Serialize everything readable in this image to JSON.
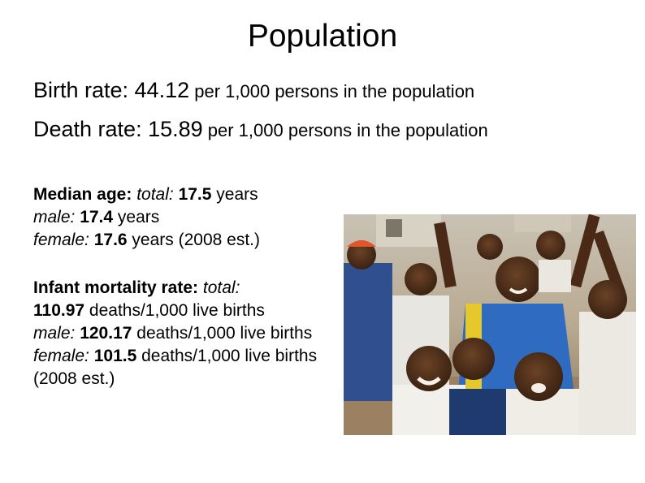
{
  "title": "Population",
  "birth_rate": {
    "label": "Birth rate: 44.12",
    "unit": " per 1,000 persons in the population"
  },
  "death_rate": {
    "label": "Death rate: 15.89",
    "unit": " per 1,000 persons in the population"
  },
  "median_age": {
    "label": "Median age:",
    "total_label": "total:",
    "total_value": "17.5",
    "total_unit": " years",
    "male_label": "male:",
    "male_value": "17.4",
    "male_unit": " years",
    "female_label": "female:",
    "female_value": "17.6",
    "female_unit": " years (2008 est.)"
  },
  "infant_mortality": {
    "label": "Infant mortality rate:",
    "total_label": "total:",
    "total_value": "110.97",
    "total_unit": " deaths/1,000 live births",
    "male_label": "male:",
    "male_value": "120.17",
    "male_unit": " deaths/1,000 live births",
    "female_label": "female:",
    "female_value": "101.5",
    "female_unit": " deaths/1,000 live births (2008 est.)"
  },
  "colors": {
    "text": "#000000",
    "background": "#ffffff"
  }
}
